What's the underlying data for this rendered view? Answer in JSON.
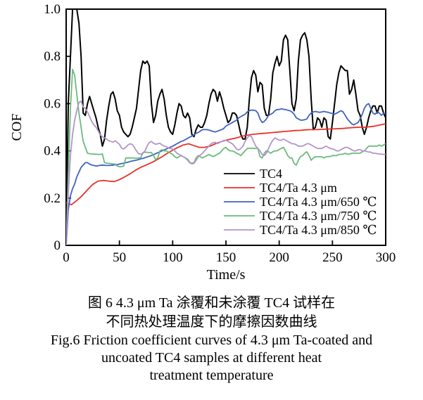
{
  "caption": {
    "cn_line1": "图 6  4.3 μm Ta 涂覆和未涂覆 TC4 试样在",
    "cn_line2": "不同热处理温度下的摩擦因数曲线",
    "en_line1": "Fig.6 Friction coefficient curves of 4.3 μm Ta-coated and",
    "en_line2": "uncoated TC4 samples at different heat",
    "en_line3": "treatment temperature"
  },
  "chart_data": {
    "type": "line",
    "title": "",
    "xlabel": "Time/s",
    "ylabel": "COF",
    "xlim": [
      0,
      300
    ],
    "ylim": [
      0,
      1.0
    ],
    "xticks": [
      0,
      50,
      100,
      150,
      200,
      250,
      300
    ],
    "xtick_labels": [
      "0",
      "50",
      "100",
      "150",
      "200",
      "250",
      "300"
    ],
    "yticks": [
      0,
      0.2,
      0.4,
      0.6,
      0.8,
      1.0
    ],
    "ytick_labels": [
      "0",
      "0.2",
      "0.4",
      "0.6",
      "0.8",
      "1.0"
    ],
    "grid": false,
    "legend_position": "inside-lower-right",
    "axis_color": "#000000",
    "series": [
      {
        "id": "tc4",
        "name": "TC4",
        "color": "#000000",
        "width": 2,
        "x_start": 0,
        "x_step": 2,
        "values": [
          0.02,
          0.6,
          0.8,
          1.0,
          1.0,
          1.0,
          0.94,
          0.8,
          0.56,
          0.55,
          0.6,
          0.63,
          0.6,
          0.57,
          0.54,
          0.5,
          0.47,
          0.42,
          0.45,
          0.53,
          0.59,
          0.64,
          0.65,
          0.62,
          0.57,
          0.55,
          0.5,
          0.48,
          0.47,
          0.46,
          0.47,
          0.5,
          0.54,
          0.58,
          0.66,
          0.74,
          0.78,
          0.77,
          0.78,
          0.76,
          0.6,
          0.52,
          0.55,
          0.61,
          0.64,
          0.66,
          0.62,
          0.55,
          0.5,
          0.48,
          0.47,
          0.51,
          0.56,
          0.6,
          0.59,
          0.55,
          0.54,
          0.56,
          0.54,
          0.47,
          0.46,
          0.49,
          0.51,
          0.5,
          0.5,
          0.52,
          0.55,
          0.6,
          0.64,
          0.66,
          0.65,
          0.61,
          0.65,
          0.62,
          0.58,
          0.55,
          0.52,
          0.53,
          0.56,
          0.56,
          0.55,
          0.51,
          0.47,
          0.45,
          0.45,
          0.5,
          0.62,
          0.71,
          0.74,
          0.72,
          0.65,
          0.69,
          0.68,
          0.58,
          0.55,
          0.55,
          0.62,
          0.73,
          0.77,
          0.8,
          0.76,
          0.78,
          0.87,
          0.89,
          0.87,
          0.74,
          0.6,
          0.57,
          0.62,
          0.78,
          0.87,
          0.89,
          0.9,
          0.87,
          0.8,
          0.62,
          0.49,
          0.5,
          0.54,
          0.53,
          0.5,
          0.54,
          0.53,
          0.46,
          0.45,
          0.52,
          0.6,
          0.68,
          0.73,
          0.76,
          0.75,
          0.74,
          0.74,
          0.64,
          0.66,
          0.7,
          0.64,
          0.57,
          0.55,
          0.5,
          0.47,
          0.5,
          0.54,
          0.57,
          0.59,
          0.59,
          0.56,
          0.59,
          0.59,
          0.56,
          0.54
        ]
      },
      {
        "id": "ta",
        "name": "TC4/Ta 4.3 μm",
        "color": "#e8312a",
        "width": 1.8,
        "x_start": 0,
        "x_step": 5,
        "values": [
          0.18,
          0.172,
          0.19,
          0.21,
          0.235,
          0.258,
          0.272,
          0.275,
          0.272,
          0.27,
          0.278,
          0.29,
          0.303,
          0.318,
          0.33,
          0.34,
          0.35,
          0.362,
          0.375,
          0.39,
          0.403,
          0.415,
          0.425,
          0.43,
          0.422,
          0.415,
          0.415,
          0.42,
          0.43,
          0.438,
          0.445,
          0.45,
          0.455,
          0.462,
          0.466,
          0.47,
          0.472,
          0.474,
          0.476,
          0.478,
          0.48,
          0.482,
          0.484,
          0.486,
          0.487,
          0.489,
          0.49,
          0.49,
          0.491,
          0.492,
          0.493,
          0.494,
          0.495,
          0.497,
          0.499,
          0.5,
          0.5,
          0.502,
          0.505,
          0.51,
          0.515
        ]
      },
      {
        "id": "ta-650",
        "name": "TC4/Ta 4.3 μm/650 ℃",
        "color": "#3f62c1",
        "width": 1.8,
        "x_start": 0,
        "x_step": 2,
        "values": [
          0.0,
          0.15,
          0.21,
          0.24,
          0.26,
          0.29,
          0.31,
          0.33,
          0.34,
          0.35,
          0.35,
          0.344,
          0.34,
          0.338,
          0.336,
          0.337,
          0.339,
          0.34,
          0.339,
          0.338,
          0.338,
          0.339,
          0.34,
          0.341,
          0.342,
          0.344,
          0.346,
          0.348,
          0.35,
          0.352,
          0.355,
          0.357,
          0.359,
          0.361,
          0.363,
          0.366,
          0.368,
          0.371,
          0.374,
          0.377,
          0.38,
          0.384,
          0.388,
          0.392,
          0.396,
          0.4,
          0.404,
          0.408,
          0.412,
          0.416,
          0.42,
          0.425,
          0.43,
          0.435,
          0.44,
          0.443,
          0.448,
          0.453,
          0.458,
          0.463,
          0.468,
          0.474,
          0.478,
          0.484,
          0.49,
          0.49,
          0.49,
          0.488,
          0.485,
          0.482,
          0.48,
          0.483,
          0.487,
          0.49,
          0.495,
          0.505,
          0.51,
          0.515,
          0.52,
          0.525,
          0.53,
          0.54,
          0.545,
          0.55,
          0.555,
          0.565,
          0.57,
          0.573,
          0.572,
          0.57,
          0.56,
          0.535,
          0.52,
          0.525,
          0.535,
          0.55,
          0.555,
          0.56,
          0.57,
          0.575,
          0.575,
          0.578,
          0.576,
          0.575,
          0.572,
          0.57,
          0.565,
          0.555,
          0.54,
          0.535,
          0.53,
          0.53,
          0.532,
          0.535,
          0.55,
          0.56,
          0.565,
          0.567,
          0.565,
          0.563,
          0.565,
          0.567,
          0.565,
          0.563,
          0.56,
          0.558,
          0.555,
          0.56,
          0.565,
          0.57,
          0.565,
          0.55,
          0.535,
          0.525,
          0.515,
          0.51,
          0.515,
          0.52,
          0.535,
          0.555,
          0.58,
          0.595,
          0.6,
          0.58,
          0.56,
          0.555,
          0.565,
          0.56,
          0.55,
          0.56,
          0.555
        ]
      },
      {
        "id": "ta-750",
        "name": "TC4/Ta 4.3 μm/750 ℃",
        "color": "#6cba7d",
        "width": 1.8,
        "x_start": 0,
        "x_step": 2,
        "values": [
          0.0,
          0.3,
          0.58,
          0.745,
          0.72,
          0.64,
          0.56,
          0.5,
          0.44,
          0.415,
          0.39,
          0.388,
          0.387,
          0.386,
          0.386,
          0.385,
          0.385,
          0.387,
          0.35,
          0.348,
          0.347,
          0.346,
          0.345,
          0.344,
          0.335,
          0.333,
          0.333,
          0.335,
          0.37,
          0.37,
          0.37,
          0.37,
          0.369,
          0.369,
          0.37,
          0.37,
          0.393,
          0.394,
          0.394,
          0.393,
          0.393,
          0.38,
          0.363,
          0.37,
          0.4,
          0.405,
          0.4,
          0.4,
          0.395,
          0.39,
          0.385,
          0.375,
          0.37,
          0.375,
          0.38,
          0.375,
          0.37,
          0.365,
          0.352,
          0.347,
          0.35,
          0.37,
          0.38,
          0.375,
          0.37,
          0.375,
          0.38,
          0.385,
          0.38,
          0.376,
          0.38,
          0.386,
          0.39,
          0.4,
          0.41,
          0.415,
          0.405,
          0.4,
          0.4,
          0.396,
          0.39,
          0.386,
          0.38,
          0.39,
          0.4,
          0.41,
          0.411,
          0.411,
          0.41,
          0.41,
          0.41,
          0.376,
          0.37,
          0.39,
          0.4,
          0.396,
          0.39,
          0.396,
          0.4,
          0.4,
          0.406,
          0.41,
          0.415,
          0.4,
          0.38,
          0.37,
          0.37,
          0.346,
          0.34,
          0.36,
          0.376,
          0.38,
          0.39,
          0.396,
          0.38,
          0.36,
          0.37,
          0.375,
          0.375,
          0.375,
          0.375,
          0.37,
          0.375,
          0.376,
          0.376,
          0.38,
          0.38,
          0.38,
          0.385,
          0.385,
          0.386,
          0.39,
          0.386,
          0.386,
          0.39,
          0.39,
          0.39,
          0.39,
          0.39,
          0.396,
          0.4,
          0.41,
          0.42,
          0.42,
          0.42,
          0.42,
          0.42,
          0.425,
          0.42,
          0.425,
          0.43
        ]
      },
      {
        "id": "ta-850",
        "name": "TC4/Ta 4.3 μm/850 ℃",
        "color": "#b394cd",
        "width": 1.8,
        "x_start": 0,
        "x_step": 2,
        "values": [
          0.0,
          0.22,
          0.38,
          0.47,
          0.53,
          0.57,
          0.605,
          0.61,
          0.585,
          0.58,
          0.565,
          0.545,
          0.525,
          0.51,
          0.5,
          0.485,
          0.468,
          0.46,
          0.455,
          0.45,
          0.443,
          0.44,
          0.437,
          0.443,
          0.435,
          0.428,
          0.412,
          0.408,
          0.415,
          0.425,
          0.43,
          0.427,
          0.415,
          0.4,
          0.388,
          0.386,
          0.39,
          0.4,
          0.42,
          0.435,
          0.44,
          0.432,
          0.428,
          0.43,
          0.432,
          0.425,
          0.42,
          0.418,
          0.412,
          0.41,
          0.408,
          0.4,
          0.39,
          0.385,
          0.38,
          0.375,
          0.37,
          0.36,
          0.35,
          0.345,
          0.347,
          0.36,
          0.375,
          0.382,
          0.39,
          0.4,
          0.41,
          0.42,
          0.43,
          0.435,
          0.436,
          0.43,
          0.435,
          0.44,
          0.444,
          0.445,
          0.44,
          0.435,
          0.43,
          0.42,
          0.408,
          0.404,
          0.41,
          0.42,
          0.44,
          0.455,
          0.465,
          0.46,
          0.44,
          0.42,
          0.41,
          0.4,
          0.385,
          0.38,
          0.39,
          0.41,
          0.43,
          0.445,
          0.455,
          0.45,
          0.445,
          0.445,
          0.45,
          0.445,
          0.44,
          0.436,
          0.43,
          0.43,
          0.426,
          0.42,
          0.42,
          0.42,
          0.425,
          0.43,
          0.43,
          0.425,
          0.42,
          0.415,
          0.41,
          0.41,
          0.41,
          0.415,
          0.42,
          0.415,
          0.41,
          0.408,
          0.405,
          0.4,
          0.4,
          0.405,
          0.41,
          0.415,
          0.415,
          0.41,
          0.405,
          0.4,
          0.4,
          0.405,
          0.405,
          0.4,
          0.4,
          0.398,
          0.395,
          0.395,
          0.39,
          0.39,
          0.388,
          0.387,
          0.386,
          0.385,
          0.385
        ]
      }
    ]
  }
}
